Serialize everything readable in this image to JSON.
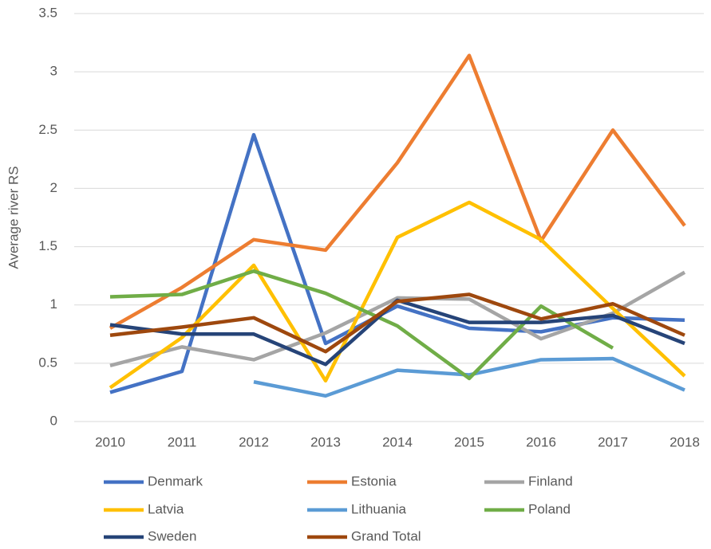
{
  "chart_data": {
    "type": "line",
    "y_label": "Average river RS",
    "categories": [
      "2010",
      "2011",
      "2012",
      "2013",
      "2014",
      "2015",
      "2016",
      "2017",
      "2018"
    ],
    "series": [
      {
        "name": "Denmark",
        "color": "#4472c4",
        "values": [
          0.25,
          0.43,
          2.46,
          0.67,
          0.99,
          0.8,
          0.77,
          0.89,
          0.87
        ]
      },
      {
        "name": "Estonia",
        "color": "#ed7d31",
        "values": [
          0.8,
          1.15,
          1.56,
          1.47,
          2.22,
          3.14,
          1.55,
          2.5,
          1.68
        ]
      },
      {
        "name": "Finland",
        "color": "#a5a5a5",
        "values": [
          0.48,
          0.64,
          0.53,
          0.76,
          1.06,
          1.05,
          0.71,
          0.93,
          1.28
        ]
      },
      {
        "name": "Latvia",
        "color": "#ffc000",
        "values": [
          0.29,
          0.72,
          1.34,
          0.35,
          1.58,
          1.88,
          1.56,
          0.97,
          0.39
        ]
      },
      {
        "name": "Lithuania",
        "color": "#5b9bd5",
        "values": [
          null,
          null,
          0.34,
          0.22,
          0.44,
          0.4,
          0.53,
          0.54,
          0.27
        ]
      },
      {
        "name": "Poland",
        "color": "#70ad47",
        "values": [
          1.07,
          1.09,
          1.29,
          1.1,
          0.82,
          0.37,
          0.99,
          0.63,
          null
        ]
      },
      {
        "name": "Sweden",
        "color": "#264478",
        "values": [
          0.83,
          0.75,
          0.75,
          0.49,
          1.04,
          0.85,
          0.85,
          0.91,
          0.67
        ]
      },
      {
        "name": "Grand Total",
        "color": "#9e480e",
        "values": [
          0.74,
          0.81,
          0.89,
          0.6,
          1.03,
          1.09,
          0.88,
          1.01,
          0.74
        ]
      }
    ],
    "ylim": [
      0,
      3.5
    ],
    "yticks": [
      0,
      0.5,
      1,
      1.5,
      2,
      2.5,
      3,
      3.5
    ],
    "grid": true
  }
}
